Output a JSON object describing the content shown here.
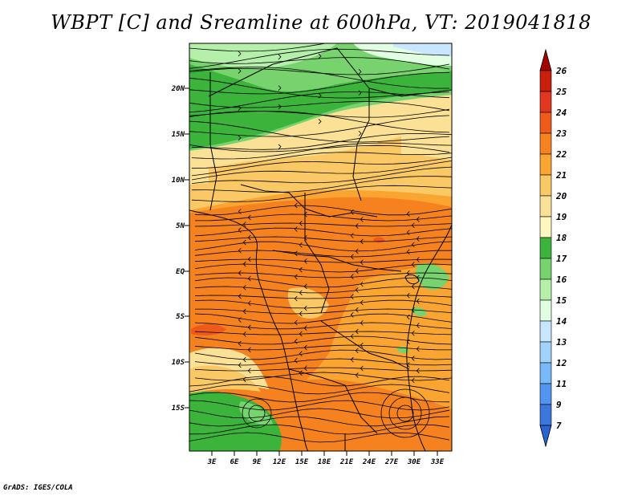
{
  "title": "WBPT [C] and Sreamline at 600hPa, VT: 2019041818",
  "credit": "GrADS: IGES/COLA",
  "map": {
    "lat_labels": [
      "20N",
      "15N",
      "10N",
      "5N",
      "EQ",
      "5S",
      "10S",
      "15S"
    ],
    "lon_labels": [
      "3E",
      "6E",
      "9E",
      "12E",
      "15E",
      "18E",
      "21E",
      "24E",
      "27E",
      "30E",
      "33E"
    ]
  },
  "colorbar": {
    "labels": [
      "26",
      "25",
      "24",
      "23",
      "22",
      "21",
      "20",
      "19",
      "18",
      "17",
      "16",
      "15",
      "14",
      "13",
      "12",
      "11",
      "9",
      "7"
    ],
    "colors": [
      "#a50000",
      "#c81e0a",
      "#e1371e",
      "#f05a19",
      "#f5821e",
      "#faa532",
      "#fac864",
      "#fae196",
      "#fff5be",
      "#3cb43c",
      "#78d26e",
      "#b4f0aa",
      "#e1ffe1",
      "#c8e6ff",
      "#a0d2fa",
      "#78b9fa",
      "#5096f0",
      "#3c78dc",
      "#2864d2"
    ]
  },
  "legend_palette": {
    "green_dark": "#3cb43c",
    "green_mid": "#78d26e",
    "green_light": "#b4f0aa",
    "yellow": "#fae196",
    "orange_light": "#fac864",
    "orange": "#faa532",
    "orange_dark": "#f5821e",
    "red_orange": "#f05a19"
  }
}
